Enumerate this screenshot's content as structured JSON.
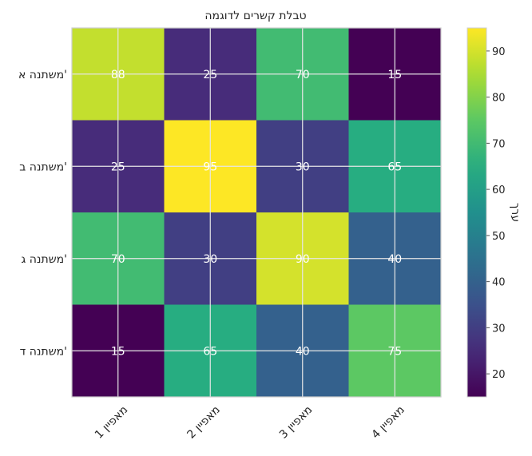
{
  "chart_data": {
    "type": "heatmap",
    "title": "טבלת קשרים לדוגמה",
    "x_categories": [
      "מאפיין 1",
      "מאפיין 2",
      "מאפיין 3",
      "מאפיין 4"
    ],
    "y_categories": [
      "משתנה א'",
      "משתנה ב'",
      "משתנה ג'",
      "משתנה ד'"
    ],
    "values": [
      [
        88,
        25,
        70,
        15
      ],
      [
        25,
        95,
        30,
        65
      ],
      [
        70,
        30,
        90,
        40
      ],
      [
        15,
        65,
        40,
        75
      ]
    ],
    "colormap": "viridis",
    "colorbar": {
      "label": "ערך",
      "vmin": 15,
      "vmax": 95,
      "ticks": [
        20,
        30,
        40,
        50,
        60,
        70,
        80,
        90
      ]
    },
    "grid": true
  }
}
